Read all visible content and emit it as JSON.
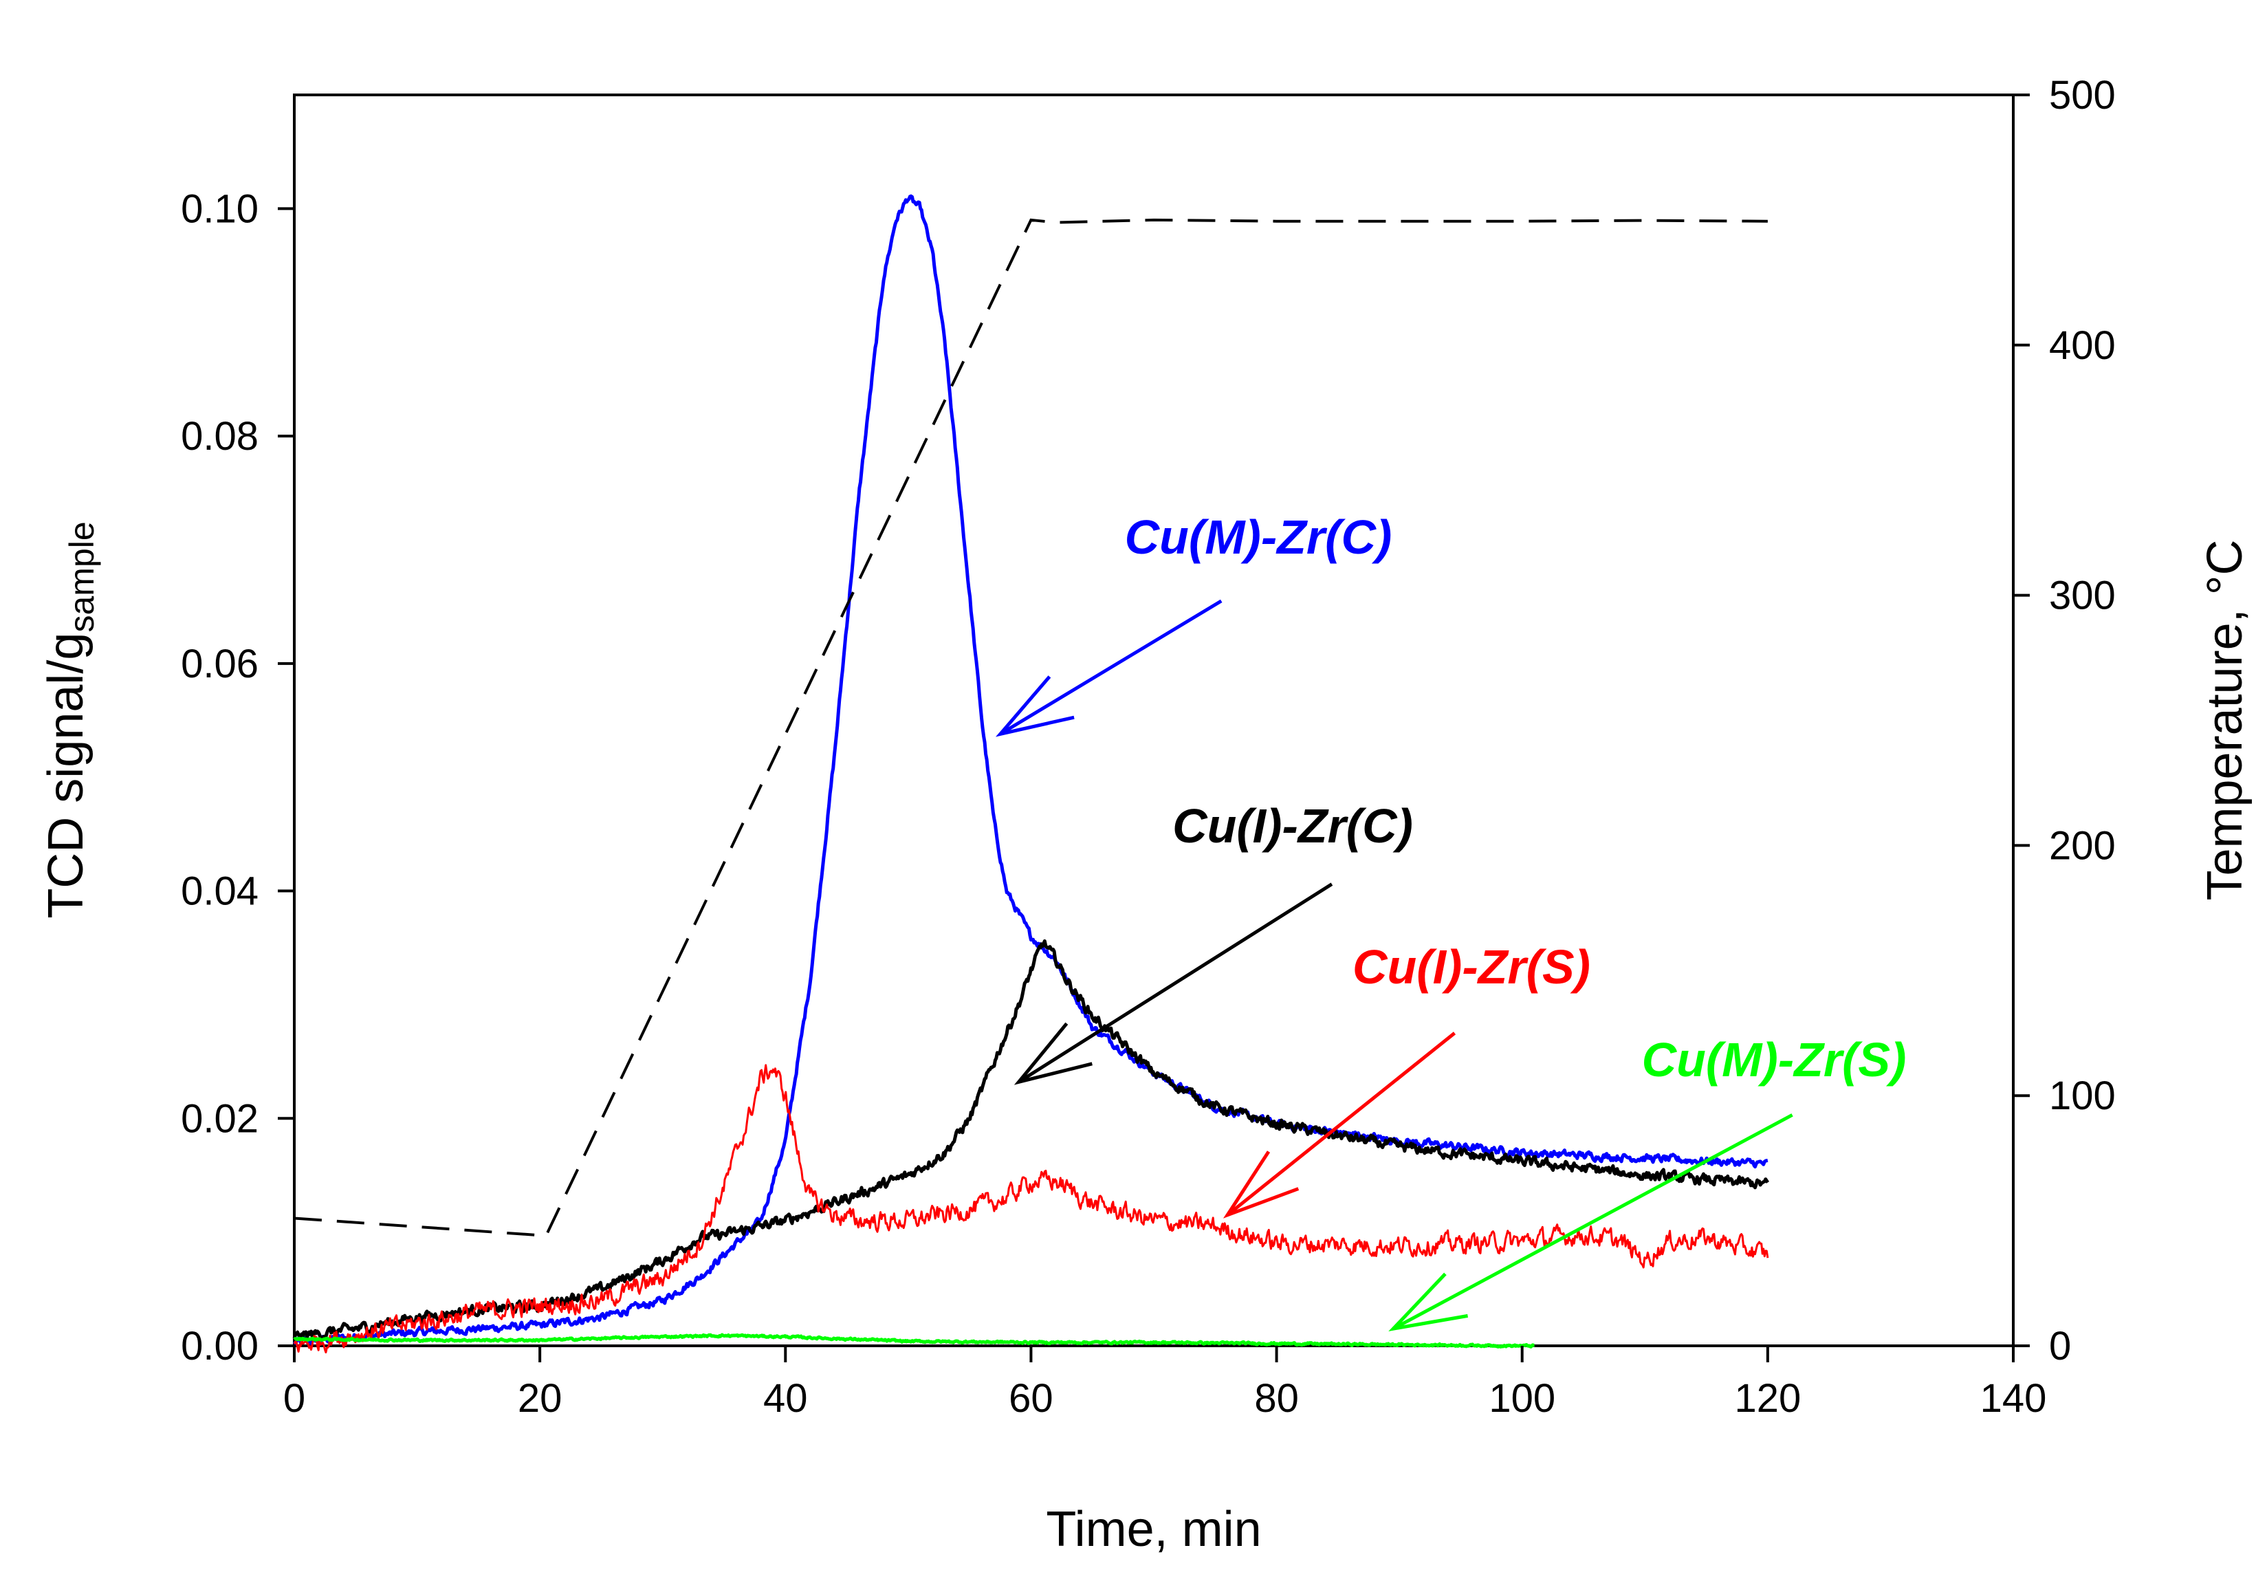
{
  "chart_data": {
    "type": "line",
    "title": "",
    "xlabel": "Time, min",
    "ylabel": "TCD signal/g",
    "ylabel_subscript": "sample",
    "y2label": "Temperature, °C",
    "xlim": [
      0,
      140
    ],
    "ylim": [
      0,
      0.11
    ],
    "y2lim": [
      0,
      500
    ],
    "grid": false,
    "x_ticks": [
      0,
      20,
      40,
      60,
      80,
      100,
      120,
      140
    ],
    "x_tick_labels": [
      "0",
      "20",
      "40",
      "60",
      "80",
      "100",
      "120",
      "140"
    ],
    "y_ticks": [
      0,
      0.02,
      0.04,
      0.06,
      0.08,
      0.1
    ],
    "y_tick_labels": [
      "0.00",
      "0.02",
      "0.04",
      "0.06",
      "0.08",
      "0.10"
    ],
    "y2_ticks": [
      0,
      100,
      200,
      300,
      400,
      500
    ],
    "y2_tick_labels": [
      "0",
      "100",
      "200",
      "300",
      "400",
      "500"
    ],
    "series": [
      {
        "name": "Cu(M)-Zr(C)",
        "color": "#0000ff",
        "noise": 0.0006,
        "x": [
          0,
          5,
          10,
          15,
          20,
          25,
          30,
          33,
          36,
          38,
          40,
          42,
          44,
          46,
          48,
          49,
          50,
          51,
          52,
          53,
          54,
          55,
          56,
          57,
          58,
          60,
          62,
          65,
          70,
          75,
          80,
          90,
          100,
          110,
          120
        ],
        "values": [
          0.0003,
          0.0008,
          0.0012,
          0.0015,
          0.0018,
          0.0025,
          0.004,
          0.006,
          0.009,
          0.011,
          0.018,
          0.032,
          0.052,
          0.075,
          0.094,
          0.099,
          0.101,
          0.1,
          0.096,
          0.088,
          0.077,
          0.066,
          0.055,
          0.046,
          0.04,
          0.036,
          0.034,
          0.028,
          0.024,
          0.021,
          0.0195,
          0.018,
          0.017,
          0.0165,
          0.016
        ]
      },
      {
        "name": "Cu(I)-Zr(C)",
        "color": "#000000",
        "noise": 0.0008,
        "x": [
          0,
          5,
          10,
          15,
          20,
          25,
          30,
          33,
          35,
          38,
          40,
          45,
          50,
          53,
          55,
          57,
          59,
          60,
          61,
          62,
          63,
          65,
          70,
          75,
          80,
          90,
          100,
          110,
          120
        ],
        "values": [
          0.0008,
          0.0015,
          0.0025,
          0.0032,
          0.0035,
          0.005,
          0.0075,
          0.0095,
          0.0098,
          0.0105,
          0.011,
          0.013,
          0.015,
          0.017,
          0.02,
          0.025,
          0.03,
          0.033,
          0.0355,
          0.034,
          0.032,
          0.029,
          0.024,
          0.021,
          0.0195,
          0.0175,
          0.0162,
          0.015,
          0.0142
        ]
      },
      {
        "name": "Cu(I)-Zr(S)",
        "color": "#ff0000",
        "noise": 0.0015,
        "x": [
          0,
          5,
          10,
          15,
          20,
          25,
          30,
          33,
          35,
          37,
          38,
          39,
          40,
          41,
          42,
          44,
          46,
          50,
          55,
          58,
          60,
          62,
          65,
          70,
          75,
          80,
          90,
          100,
          105,
          108,
          110,
          112,
          115,
          120
        ],
        "values": [
          0.0,
          0.001,
          0.002,
          0.003,
          0.0035,
          0.004,
          0.006,
          0.009,
          0.014,
          0.02,
          0.0235,
          0.0245,
          0.022,
          0.017,
          0.013,
          0.0115,
          0.011,
          0.011,
          0.012,
          0.013,
          0.0145,
          0.0145,
          0.0125,
          0.011,
          0.0105,
          0.009,
          0.0088,
          0.0092,
          0.0098,
          0.0092,
          0.0075,
          0.0092,
          0.0095,
          0.008
        ]
      },
      {
        "name": "Cu(M)-Zr(S)",
        "color": "#00ff00",
        "noise": 0.00015,
        "x": [
          0,
          10,
          20,
          30,
          35,
          40,
          50,
          60,
          70,
          80,
          90,
          100,
          101
        ],
        "values": [
          0.0006,
          0.0005,
          0.0005,
          0.0008,
          0.0009,
          0.0008,
          0.0004,
          0.0003,
          0.0003,
          0.0002,
          0.0001,
          0.0,
          0.0
        ]
      }
    ],
    "temperature_series": {
      "name": "Temperature",
      "color": "#000000",
      "dash": "dashed",
      "axis": "y2",
      "x": [
        0,
        20.5,
        60,
        62,
        70,
        80,
        90,
        100,
        110,
        120
      ],
      "values": [
        51,
        44,
        450,
        449,
        450,
        449.5,
        449.5,
        449.5,
        449.8,
        449.5
      ]
    },
    "annotations": [
      {
        "text": "Cu(M)-Zr(C)",
        "color": "#0000ff",
        "arrow_from": [
          75.5,
          0.0655
        ],
        "arrow_to": [
          57.5,
          0.0538
        ]
      },
      {
        "text": "Cu(I)-Zr(C)",
        "color": "#000000",
        "arrow_from": [
          84.5,
          0.0406
        ],
        "arrow_to": [
          59,
          0.0232
        ]
      },
      {
        "text": "Cu(I)-Zr(S)",
        "color": "#ff0000",
        "arrow_from": [
          94.5,
          0.0275
        ],
        "arrow_to": [
          76,
          0.0115
        ]
      },
      {
        "text": "Cu(M)-Zr(S)",
        "color": "#00ff00",
        "arrow_from": [
          122,
          0.0203
        ],
        "arrow_to": [
          89.5,
          0.0015
        ]
      }
    ]
  }
}
